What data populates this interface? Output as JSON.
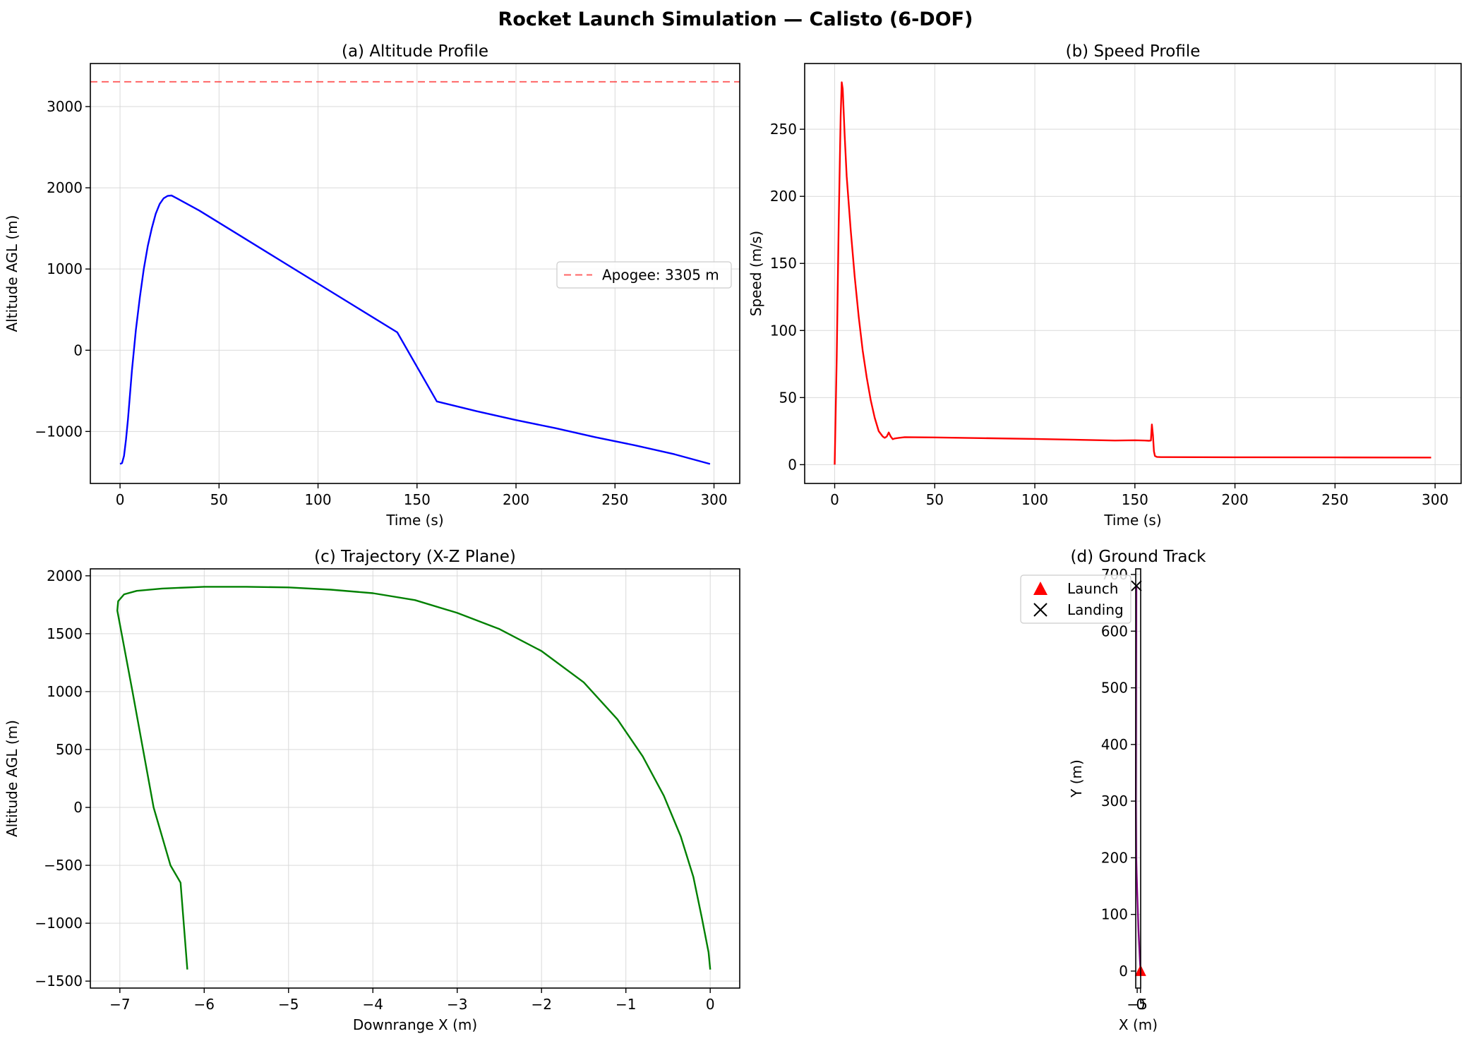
{
  "figure": {
    "suptitle": "Rocket Launch Simulation — Calisto (6-DOF)"
  },
  "chart_data": [
    {
      "id": "a",
      "type": "line",
      "title": "(a) Altitude Profile",
      "xlabel": "Time (s)",
      "ylabel": "Altitude AGL (m)",
      "xlim": [
        -15,
        313
      ],
      "ylim": [
        -1640,
        3530
      ],
      "xticks": [
        0,
        50,
        100,
        150,
        200,
        250,
        300
      ],
      "yticks": [
        -1000,
        0,
        1000,
        2000,
        3000
      ],
      "grid": true,
      "legend_position": "center-right",
      "series": [
        {
          "color": "#0000ff",
          "x": [
            0,
            1,
            2,
            3,
            4,
            5,
            6,
            8,
            10,
            12,
            14,
            16,
            18,
            20,
            22,
            24,
            26,
            28,
            40,
            60,
            80,
            100,
            120,
            140,
            160,
            180,
            200,
            220,
            240,
            260,
            280,
            298
          ],
          "y": [
            -1400,
            -1390,
            -1300,
            -1100,
            -850,
            -550,
            -250,
            250,
            650,
            1000,
            1280,
            1500,
            1680,
            1800,
            1870,
            1900,
            1905,
            1880,
            1720,
            1420,
            1120,
            820,
            520,
            220,
            -630,
            -750,
            -860,
            -960,
            -1070,
            -1170,
            -1280,
            -1400
          ]
        }
      ],
      "reference_lines": [
        {
          "name": "Apogee: 3305 m",
          "y": 3305,
          "color": "#ff0000",
          "style": "dashed",
          "opacity": 0.6
        }
      ]
    },
    {
      "id": "b",
      "type": "line",
      "title": "(b) Speed Profile",
      "xlabel": "Time (s)",
      "ylabel": "Speed (m/s)",
      "xlim": [
        -15,
        313
      ],
      "ylim": [
        -14,
        299
      ],
      "xticks": [
        0,
        50,
        100,
        150,
        200,
        250,
        300
      ],
      "yticks": [
        0,
        50,
        100,
        150,
        200,
        250
      ],
      "grid": true,
      "series": [
        {
          "color": "#ff0000",
          "x": [
            0,
            1,
            2,
            3,
            3.5,
            4,
            5,
            6,
            8,
            10,
            12,
            14,
            16,
            18,
            20,
            22,
            24,
            25,
            26,
            27,
            28,
            29,
            30,
            32,
            35,
            50,
            100,
            140,
            150,
            155,
            157,
            158,
            158.5,
            159,
            159.5,
            160,
            161,
            163,
            200,
            250,
            298
          ],
          "y": [
            0,
            80,
            180,
            260,
            285,
            280,
            245,
            215,
            175,
            140,
            110,
            85,
            65,
            48,
            35,
            25,
            21,
            20,
            21,
            24,
            21,
            19,
            19.5,
            20,
            20.5,
            20.3,
            19.2,
            18,
            18.2,
            18,
            17.8,
            18,
            30,
            22,
            10,
            6.5,
            5.8,
            5.6,
            5.5,
            5.4,
            5.3
          ]
        }
      ]
    },
    {
      "id": "c",
      "type": "line",
      "title": "(c) Trajectory (X-Z Plane)",
      "xlabel": "Downrange X (m)",
      "ylabel": "Altitude AGL (m)",
      "xlim": [
        -7.35,
        0.35
      ],
      "ylim": [
        -1560,
        2060
      ],
      "xticks": [
        -7,
        -6,
        -5,
        -4,
        -3,
        -2,
        -1,
        0
      ],
      "yticks": [
        -1500,
        -1000,
        -500,
        0,
        500,
        1000,
        1500,
        2000
      ],
      "grid": true,
      "series": [
        {
          "color": "#008000",
          "x": [
            0,
            -0.02,
            -0.1,
            -0.2,
            -0.35,
            -0.55,
            -0.8,
            -1.1,
            -1.5,
            -2.0,
            -2.5,
            -3.0,
            -3.5,
            -4.0,
            -4.5,
            -5.0,
            -5.5,
            -6.0,
            -6.5,
            -6.8,
            -6.95,
            -7.02,
            -7.03,
            -6.85,
            -6.6,
            -6.4,
            -6.28,
            -6.2
          ],
          "y": [
            -1400,
            -1250,
            -950,
            -600,
            -250,
            100,
            440,
            760,
            1080,
            1350,
            1540,
            1680,
            1790,
            1850,
            1880,
            1900,
            1905,
            1905,
            1890,
            1870,
            1840,
            1780,
            1700,
            1000,
            0,
            -500,
            -650,
            -1400
          ]
        }
      ]
    },
    {
      "id": "d",
      "type": "line",
      "title": "(d) Ground Track",
      "xlabel": "X (m)",
      "ylabel": "Y (m)",
      "xlim": [
        -7.2,
        0.2
      ],
      "ylim": [
        -30,
        710
      ],
      "xticks": [
        -5,
        0
      ],
      "xticklabels": [
        "−5",
        "0"
      ],
      "yticks": [
        0,
        100,
        200,
        300,
        400,
        500,
        600,
        700
      ],
      "grid": true,
      "legend_position": "upper-left (outside)",
      "series": [
        {
          "color": "#800080",
          "x": [
            0,
            -1,
            -3,
            -5,
            -6.5,
            -7.02,
            -6.6,
            -6.2
          ],
          "y": [
            0,
            20,
            70,
            140,
            200,
            300,
            550,
            680
          ]
        }
      ],
      "markers": [
        {
          "name": "Launch",
          "x": 0,
          "y": 0,
          "shape": "triangle",
          "color": "#ff0000"
        },
        {
          "name": "Landing",
          "x": -6.2,
          "y": 680,
          "shape": "x",
          "color": "#000000"
        }
      ]
    }
  ]
}
